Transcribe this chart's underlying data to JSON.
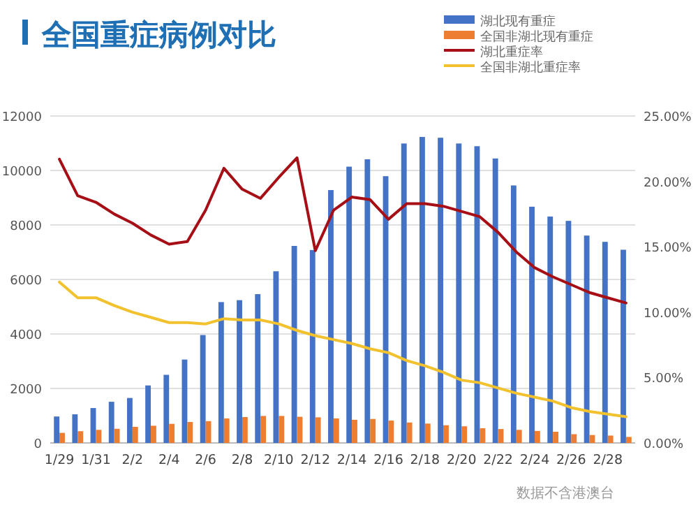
{
  "chart_data": {
    "type": "bar",
    "title": "全国重症病例对比",
    "annotations": [
      "数据不含港澳台"
    ],
    "categories": [
      "1/29",
      null,
      "1/31",
      null,
      "2/2",
      null,
      "2/4",
      null,
      "2/6",
      null,
      "2/8",
      null,
      "2/10",
      null,
      "2/12",
      null,
      "2/14",
      null,
      "2/16",
      null,
      "2/18",
      null,
      "2/20",
      null,
      "2/22",
      null,
      "2/24",
      null,
      "2/26",
      null,
      "2/28",
      null
    ],
    "series": [
      {
        "name": "湖北现有重症",
        "color": "#4472c4",
        "values": [
          970,
          1050,
          1280,
          1510,
          1650,
          2110,
          2500,
          3060,
          3960,
          5170,
          5240,
          5460,
          6300,
          7230,
          7080,
          9280,
          10140,
          10410,
          9790,
          10990,
          11230,
          11200,
          10990,
          10890,
          10440,
          9450,
          8670,
          8310,
          8150,
          7610,
          7380,
          7090
        ]
      },
      {
        "name": "全国非湖北现有重症",
        "color": "#ed7d31",
        "values": [
          370,
          430,
          480,
          520,
          590,
          630,
          700,
          770,
          800,
          900,
          950,
          990,
          990,
          960,
          940,
          900,
          850,
          880,
          820,
          750,
          710,
          650,
          610,
          540,
          510,
          480,
          440,
          410,
          320,
          290,
          270,
          220
        ]
      },
      {
        "name": "湖北重症率",
        "type": "line",
        "axis": "y2",
        "color": "#a50f15",
        "values": [
          21.7,
          18.9,
          18.4,
          17.5,
          16.8,
          15.9,
          15.2,
          15.4,
          17.8,
          21.0,
          19.4,
          18.7,
          20.3,
          21.8,
          14.7,
          17.8,
          18.8,
          18.6,
          17.1,
          18.3,
          18.3,
          18.1,
          17.7,
          17.3,
          16.1,
          14.6,
          13.4,
          12.7,
          12.1,
          11.5,
          11.1,
          10.7
        ]
      },
      {
        "name": "全国非湖北重症率",
        "type": "line",
        "axis": "y2",
        "color": "#f2c12e",
        "values": [
          12.3,
          11.1,
          11.1,
          10.5,
          10.0,
          9.6,
          9.2,
          9.2,
          9.1,
          9.5,
          9.4,
          9.4,
          9.1,
          8.6,
          8.2,
          7.9,
          7.6,
          7.2,
          6.9,
          6.3,
          5.9,
          5.4,
          4.8,
          4.6,
          4.2,
          3.8,
          3.5,
          3.2,
          2.7,
          2.4,
          2.2,
          2.0
        ]
      }
    ],
    "ylim": [
      0,
      12000
    ],
    "yticks": [
      0,
      2000,
      4000,
      6000,
      8000,
      10000,
      12000
    ],
    "y2lim": [
      0,
      25
    ],
    "y2ticks": [
      {
        "value": 0,
        "label": "0.00%"
      },
      {
        "value": 5,
        "label": "5.00%"
      },
      {
        "value": 10,
        "label": "10.00%"
      },
      {
        "value": 15,
        "label": "15.00%"
      },
      {
        "value": 20,
        "label": "20.00%"
      },
      {
        "value": 25,
        "label": "25.00%"
      }
    ],
    "grid": "y",
    "legend": "top right"
  }
}
